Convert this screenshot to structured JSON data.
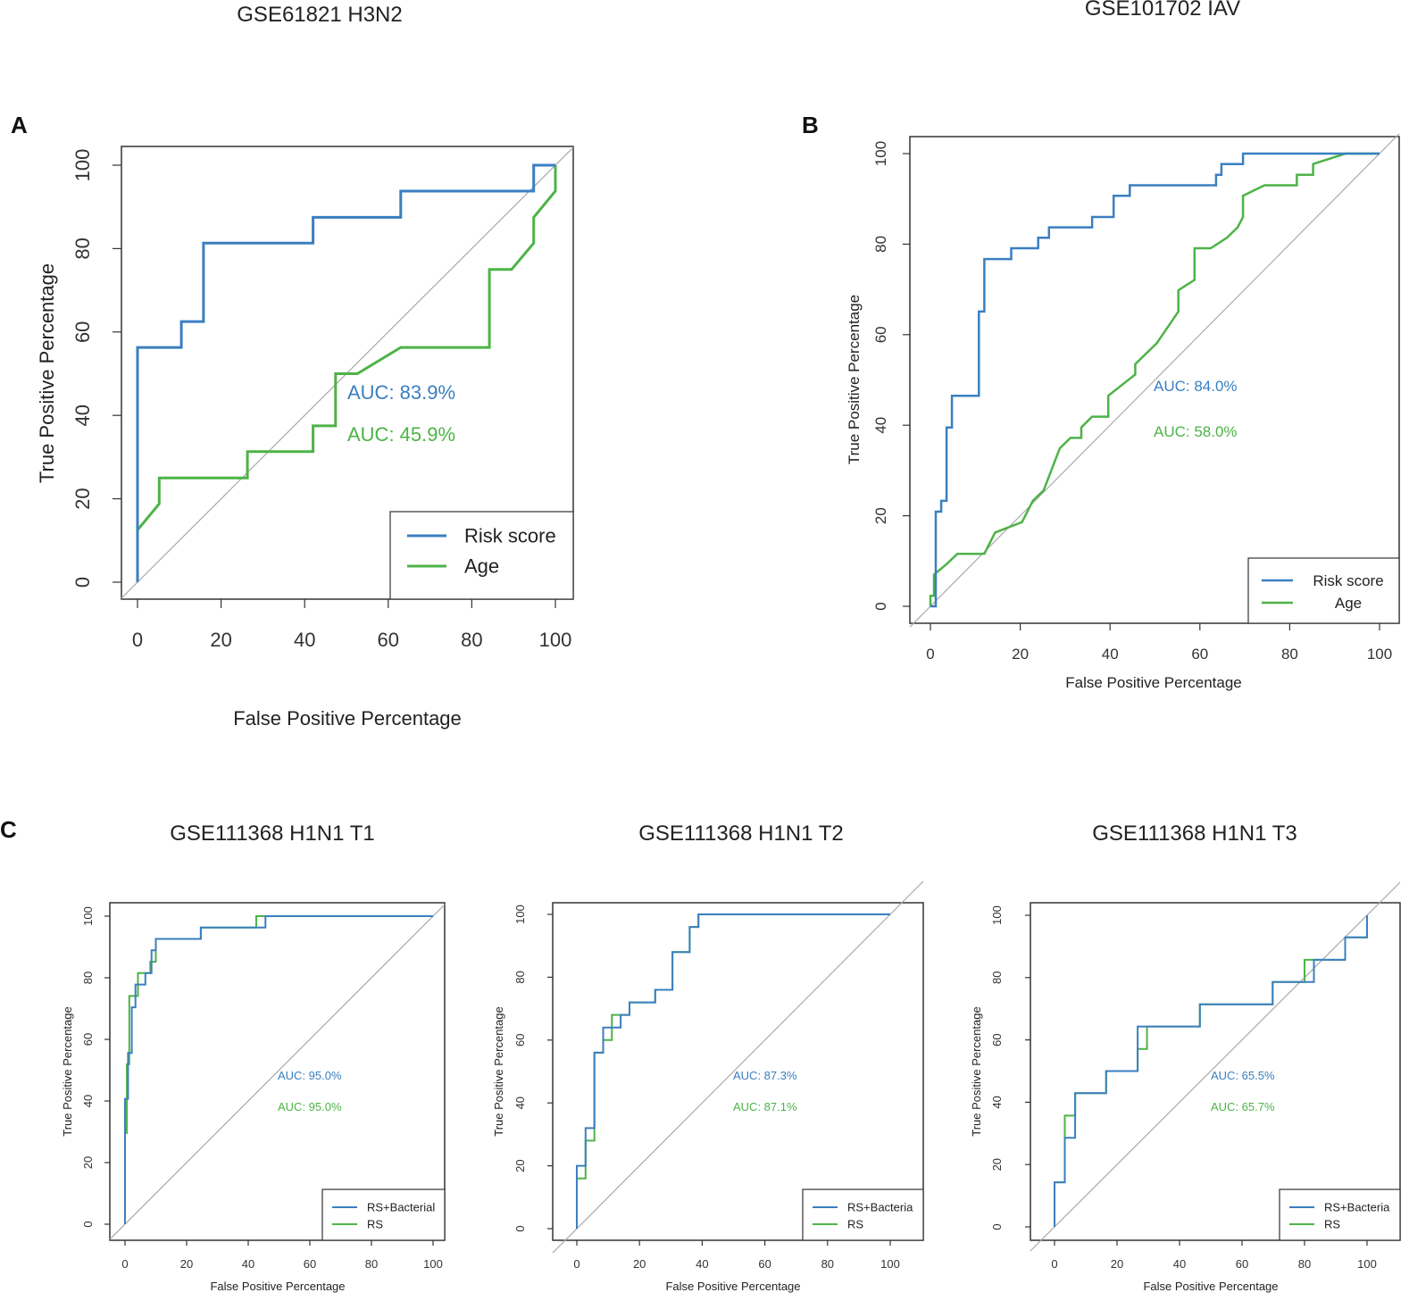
{
  "colors": {
    "risk": "#3a7fc0",
    "age": "#4db347",
    "diag": "#aaaaaa",
    "axis": "#333333"
  },
  "panel_labels": {
    "a": "A",
    "b": "B",
    "c": "C"
  },
  "chart_data": [
    {
      "id": "A",
      "type": "line",
      "title": "GSE61821 H3N2",
      "xlabel": "False Positive Percentage",
      "ylabel": "True Positive Percentage",
      "xlim": [
        0,
        100
      ],
      "ylim": [
        0,
        100
      ],
      "ticks": [
        "0",
        "20",
        "40",
        "60",
        "80",
        "100"
      ],
      "legend_position": "bottom-right",
      "series": [
        {
          "name": "Risk score",
          "color": "risk",
          "auc": "AUC: 83.9%",
          "x": [
            0,
            0,
            10.5,
            10.5,
            15.8,
            15.8,
            42,
            42,
            63,
            63,
            94.8,
            94.8,
            100,
            100
          ],
          "y": [
            0,
            56.3,
            56.3,
            62.5,
            62.5,
            81.3,
            81.3,
            87.5,
            87.5,
            93.8,
            93.8,
            100,
            100,
            100
          ]
        },
        {
          "name": "Age",
          "color": "age",
          "auc": "AUC: 45.9%",
          "x": [
            0,
            0,
            5.2,
            5.2,
            26.3,
            26.3,
            42,
            42,
            47.4,
            47.4,
            52.6,
            63,
            84.2,
            84.2,
            89.5,
            94.8,
            94.8,
            100,
            100
          ],
          "y": [
            0,
            12.5,
            18.8,
            25,
            25,
            31.3,
            31.3,
            37.5,
            37.5,
            50,
            50,
            56.3,
            56.3,
            75,
            75,
            81.3,
            87.5,
            93.8,
            100
          ]
        }
      ]
    },
    {
      "id": "B",
      "type": "line",
      "title": "GSE101702 IAV",
      "xlabel": "False Positive Percentage",
      "ylabel": "True Positive Percentage",
      "xlim": [
        0,
        100
      ],
      "ylim": [
        0,
        100
      ],
      "ticks": [
        "0",
        "20",
        "40",
        "60",
        "80",
        "100"
      ],
      "legend_position": "bottom-right",
      "series": [
        {
          "name": "Risk score",
          "color": "risk",
          "auc": "AUC: 84.0%",
          "x": [
            0,
            1.2,
            1.2,
            2.4,
            2.4,
            3.6,
            3.6,
            4.8,
            4.8,
            6,
            6,
            10.8,
            10.8,
            12,
            12,
            15.6,
            15.6,
            18,
            18,
            21.6,
            21.6,
            24,
            24,
            26.4,
            26.4,
            31.2,
            31.2,
            36,
            36,
            40.8,
            40.8,
            44.4,
            44.4,
            63.6,
            63.6,
            64.8,
            64.8,
            69.6,
            69.6,
            92.4,
            100
          ],
          "y": [
            0,
            0,
            20.9,
            20.9,
            23.3,
            23.3,
            39.5,
            39.5,
            46.5,
            46.5,
            46.5,
            46.5,
            65.1,
            65.1,
            76.7,
            76.7,
            76.7,
            76.7,
            79.1,
            79.1,
            79.1,
            79.1,
            81.4,
            81.4,
            83.7,
            83.7,
            83.7,
            83.7,
            86,
            86,
            90.7,
            90.7,
            93,
            93,
            95.3,
            95.3,
            97.7,
            97.7,
            100,
            100,
            100
          ]
        },
        {
          "name": "Age",
          "color": "age",
          "auc": "AUC: 58.0%",
          "x": [
            0,
            0,
            0.8,
            0.8,
            3.6,
            6,
            10.8,
            12,
            14.4,
            20.4,
            22.8,
            22.8,
            25.2,
            25.2,
            28.8,
            28.8,
            31.2,
            33.6,
            33.6,
            36,
            36,
            39.6,
            39.6,
            45.6,
            45.6,
            48,
            50.4,
            55.2,
            55.2,
            58.8,
            58.8,
            62.4,
            66,
            68.4,
            69.6,
            69.6,
            74.4,
            77.4,
            81.6,
            81.6,
            85.2,
            85.2,
            92.4,
            100
          ],
          "y": [
            0,
            2.3,
            2.3,
            7,
            9.3,
            11.6,
            11.6,
            11.6,
            16.3,
            18.6,
            23.3,
            23.3,
            25.6,
            25.6,
            34.9,
            34.9,
            37.2,
            37.2,
            39.5,
            41.9,
            41.9,
            41.9,
            46.5,
            51.2,
            53.5,
            55.8,
            58.1,
            65.1,
            69.8,
            72.1,
            79.1,
            79.1,
            81.4,
            83.7,
            86,
            90.7,
            93,
            93,
            93,
            95.3,
            95.3,
            97.7,
            100,
            100
          ]
        }
      ]
    },
    {
      "id": "C1",
      "type": "line",
      "title": "GSE111368 H1N1 T1",
      "xlabel": "False Positive Percentage",
      "ylabel": "True Positive Percentage",
      "xlim": [
        0,
        100
      ],
      "ylim": [
        0,
        100
      ],
      "ticks": [
        "0",
        "20",
        "40",
        "60",
        "80",
        "100"
      ],
      "legend_position": "bottom-right",
      "series": [
        {
          "name": "RS+Bacterial",
          "color": "risk",
          "auc": "AUC: 95.0%",
          "x": [
            0,
            0,
            1,
            1,
            2.2,
            2.2,
            3.4,
            3.4,
            4.6,
            4.6,
            6.6,
            6.6,
            8.6,
            8.6,
            10,
            10,
            24.6,
            24.6,
            42.6,
            42.6,
            45.6,
            45.6,
            100
          ],
          "y": [
            0,
            40.7,
            40.7,
            55.6,
            55.6,
            70.4,
            70.4,
            77.8,
            77.8,
            77.8,
            77.8,
            81.5,
            81.5,
            88.9,
            88.9,
            92.6,
            92.6,
            96.3,
            96.3,
            96.3,
            96.3,
            100,
            100
          ]
        },
        {
          "name": "RS",
          "color": "age",
          "auc": "AUC: 95.0%",
          "x": [
            0,
            0,
            0.6,
            0.6,
            1.4,
            1.4,
            2.4,
            2.4,
            4.2,
            4.2,
            5.8,
            5.8,
            8.2,
            8.2,
            10,
            10,
            24.6,
            24.6,
            42.6,
            42.6,
            100
          ],
          "y": [
            0,
            29.6,
            29.6,
            51.9,
            51.9,
            74.1,
            74.1,
            74.1,
            74.1,
            81.5,
            81.5,
            81.5,
            81.5,
            85.2,
            85.2,
            92.6,
            92.6,
            96.3,
            96.3,
            100,
            100
          ]
        }
      ]
    },
    {
      "id": "C2",
      "type": "line",
      "title": "GSE111368 H1N1 T2",
      "xlabel": "False Positive Percentage",
      "ylabel": "True Positive Percentage",
      "xlim": [
        0,
        100
      ],
      "ylim": [
        0,
        100
      ],
      "ticks": [
        "0",
        "20",
        "40",
        "60",
        "80",
        "100"
      ],
      "legend_position": "bottom-right",
      "series": [
        {
          "name": "RS+Bacteria",
          "color": "risk",
          "auc": "AUC: 87.3%",
          "x": [
            0,
            0,
            2.8,
            2.8,
            5.6,
            5.6,
            8.4,
            8.4,
            11.2,
            11.2,
            14,
            14,
            16.8,
            16.8,
            25,
            25,
            30.5,
            30.5,
            36,
            36,
            38.8,
            38.8,
            100
          ],
          "y": [
            0,
            20,
            20,
            32,
            32,
            56,
            56,
            64,
            64,
            64,
            64,
            68,
            68,
            72,
            72,
            76,
            76,
            88,
            88,
            96,
            96,
            100,
            100
          ]
        },
        {
          "name": "RS",
          "color": "age",
          "auc": "AUC: 87.1%",
          "x": [
            0,
            0,
            2.8,
            2.8,
            4.2,
            4.2,
            5.6,
            5.6,
            8.4,
            8.4,
            11.2,
            11.2,
            16.8,
            16.8,
            25,
            25,
            30.5,
            30.5,
            36,
            36,
            38.8,
            38.8,
            100
          ],
          "y": [
            0,
            16,
            16,
            28,
            28,
            28,
            28,
            56,
            56,
            60,
            60,
            68,
            68,
            72,
            72,
            76,
            76,
            88,
            88,
            96,
            96,
            100,
            100
          ]
        }
      ]
    },
    {
      "id": "C3",
      "type": "line",
      "title": "GSE111368 H1N1 T3",
      "xlabel": "False Positive Percentage",
      "ylabel": "True Positive Percentage",
      "xlim": [
        0,
        100
      ],
      "ylim": [
        0,
        100
      ],
      "ticks": [
        "0",
        "20",
        "40",
        "60",
        "80",
        "100"
      ],
      "legend_position": "bottom-right",
      "series": [
        {
          "name": "RS+Bacteria",
          "color": "risk",
          "auc": "AUC: 65.5%",
          "x": [
            0,
            0,
            3.3,
            3.3,
            6.6,
            6.6,
            16.5,
            16.5,
            26.6,
            26.6,
            29.6,
            29.6,
            46.5,
            46.5,
            69.8,
            69.8,
            83,
            83,
            93,
            93,
            100,
            100
          ],
          "y": [
            0,
            14.3,
            14.3,
            28.6,
            28.6,
            42.9,
            42.9,
            50,
            50,
            64.3,
            64.3,
            64.3,
            64.3,
            71.4,
            71.4,
            78.6,
            78.6,
            85.7,
            85.7,
            92.9,
            92.9,
            100
          ]
        },
        {
          "name": "RS",
          "color": "age",
          "auc": "AUC: 65.7%",
          "x": [
            0,
            0,
            3.3,
            3.3,
            6.6,
            6.6,
            16.5,
            16.5,
            26.6,
            26.6,
            29.6,
            29.6,
            46.5,
            46.5,
            69.8,
            69.8,
            80,
            80,
            93,
            93,
            100,
            100
          ],
          "y": [
            0,
            14.3,
            14.3,
            35.7,
            35.7,
            42.9,
            42.9,
            50,
            50,
            57.1,
            57.1,
            64.3,
            64.3,
            71.4,
            71.4,
            78.6,
            78.6,
            85.7,
            85.7,
            92.9,
            92.9,
            100
          ]
        }
      ]
    }
  ]
}
